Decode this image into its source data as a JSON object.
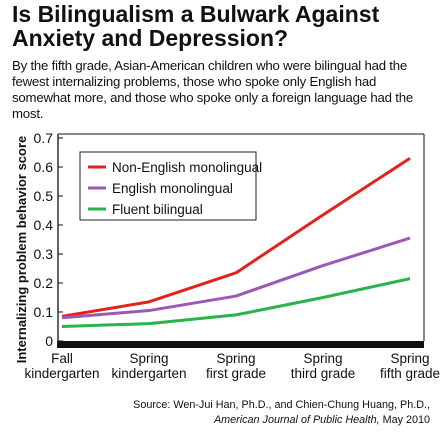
{
  "title": "Is Bilingualism a Bulwark Against Anxiety and Depression?",
  "subtitle": "By the fifth grade, Asian-American children who were bilingual had the fewest internalizing problems, those who spoke only English had somewhat more, and those who spoke only a foreign language had the most.",
  "source": {
    "line1": "Source: Wen-Jui Han, Ph.D., and Chien-Chung Huang, Ph.D.,",
    "journal": "American Journal of Public Health,",
    "date": " May 2010"
  },
  "colors": {
    "non_english_monolingual": "#e2231a",
    "english_monolingual": "#9b59b6",
    "fluent_bilingual": "#2bb34a",
    "axis": "#111111",
    "baseline_bar": "#111111"
  },
  "chart_data": {
    "type": "line",
    "title": "",
    "ylabel": "Internalizing problem behavior score",
    "xlabel": "",
    "ylim": [
      0,
      0.7
    ],
    "yticks": [
      "0",
      "0.1",
      "0.2",
      "0.3",
      "0.4",
      "0.5",
      "0.6",
      "0.7"
    ],
    "categories": [
      [
        "Fall",
        "kindergarten"
      ],
      [
        "Spring",
        "kindergarten"
      ],
      [
        "Spring",
        "first grade"
      ],
      [
        "Spring",
        "third grade"
      ],
      [
        "Spring",
        "fifth grade"
      ]
    ],
    "legend_position": "top-left",
    "grid": false,
    "series": [
      {
        "name": "Non-English monolingual",
        "color": "#e2231a",
        "values": [
          0.085,
          0.135,
          0.235,
          0.435,
          0.63
        ]
      },
      {
        "name": "English monolingual",
        "color": "#9b59b6",
        "values": [
          0.08,
          0.105,
          0.155,
          0.26,
          0.355
        ]
      },
      {
        "name": "Fluent bilingual",
        "color": "#2bb34a",
        "values": [
          0.05,
          0.06,
          0.09,
          0.15,
          0.215
        ]
      }
    ]
  }
}
